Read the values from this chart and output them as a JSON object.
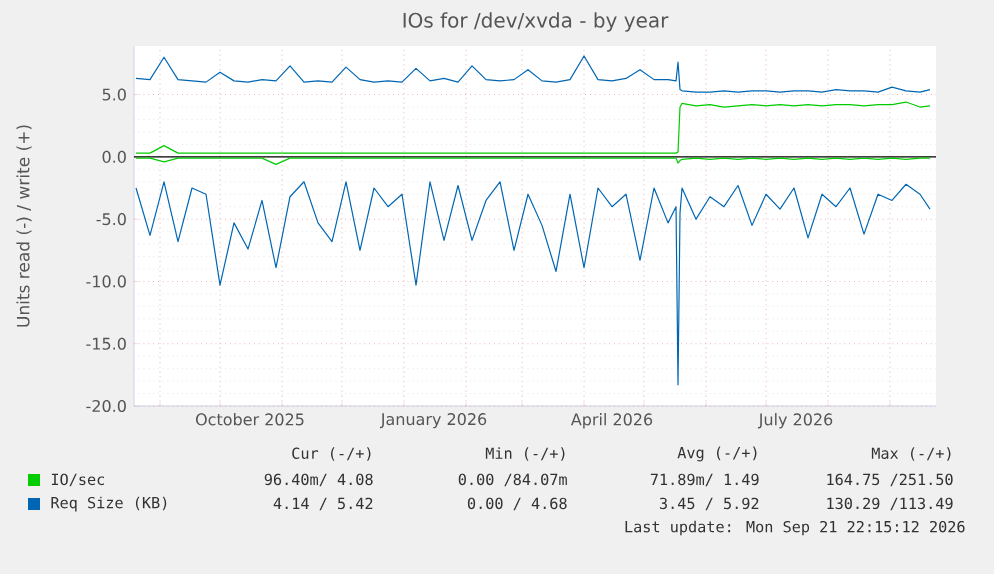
{
  "chart_data": {
    "type": "line",
    "title": "IOs for /dev/xvda - by year",
    "ylabel": "Units read (-) / write (+)",
    "x": [
      "2025-08-20",
      "2025-08-27",
      "2025-09-03",
      "2025-09-10",
      "2025-09-17",
      "2025-09-24",
      "2025-10-01",
      "2025-10-08",
      "2025-10-15",
      "2025-10-22",
      "2025-10-29",
      "2025-11-05",
      "2025-11-12",
      "2025-11-19",
      "2025-11-26",
      "2025-12-03",
      "2025-12-10",
      "2025-12-17",
      "2025-12-24",
      "2025-12-31",
      "2026-01-07",
      "2026-01-14",
      "2026-01-21",
      "2026-01-28",
      "2026-02-04",
      "2026-02-11",
      "2026-02-18",
      "2026-02-25",
      "2026-03-04",
      "2026-03-11",
      "2026-03-18",
      "2026-03-25",
      "2026-04-01",
      "2026-04-08",
      "2026-04-15",
      "2026-04-22",
      "2026-04-29",
      "2026-05-06",
      "2026-05-13",
      "2026-05-17",
      "2026-05-18",
      "2026-05-19",
      "2026-05-20",
      "2026-05-27",
      "2026-06-03",
      "2026-06-10",
      "2026-06-17",
      "2026-06-24",
      "2026-07-01",
      "2026-07-08",
      "2026-07-15",
      "2026-07-22",
      "2026-07-29",
      "2026-08-05",
      "2026-08-12",
      "2026-08-19",
      "2026-08-26",
      "2026-09-02",
      "2026-09-09",
      "2026-09-16",
      "2026-09-21"
    ],
    "series": [
      {
        "name": "IO/sec",
        "color": "#00cc00",
        "values": [
          0.3,
          0.3,
          0.9,
          0.3,
          0.3,
          0.3,
          0.3,
          0.3,
          0.3,
          0.3,
          0.3,
          0.3,
          0.3,
          0.3,
          0.3,
          0.3,
          0.3,
          0.3,
          0.3,
          0.3,
          0.3,
          0.3,
          0.3,
          0.3,
          0.3,
          0.3,
          0.3,
          0.3,
          0.3,
          0.3,
          0.3,
          0.3,
          0.3,
          0.3,
          0.3,
          0.3,
          0.3,
          0.3,
          0.3,
          0.3,
          0.4,
          4.0,
          4.3,
          4.1,
          4.2,
          4.0,
          4.1,
          4.2,
          4.1,
          4.2,
          4.1,
          4.2,
          4.1,
          4.2,
          4.2,
          4.1,
          4.2,
          4.2,
          4.4,
          4.0,
          4.1
        ]
      },
      {
        "color": "#00cc00",
        "values": [
          -0.1,
          -0.1,
          -0.4,
          -0.1,
          -0.1,
          -0.1,
          -0.1,
          -0.1,
          -0.1,
          -0.1,
          -0.6,
          -0.1,
          -0.1,
          -0.1,
          -0.1,
          -0.1,
          -0.1,
          -0.1,
          -0.1,
          -0.1,
          -0.1,
          -0.1,
          -0.1,
          -0.1,
          -0.1,
          -0.1,
          -0.1,
          -0.1,
          -0.1,
          -0.1,
          -0.1,
          -0.1,
          -0.1,
          -0.1,
          -0.1,
          -0.1,
          -0.1,
          -0.1,
          -0.1,
          -0.1,
          -0.5,
          -0.3,
          -0.2,
          -0.1,
          -0.2,
          -0.1,
          -0.2,
          -0.1,
          -0.2,
          -0.1,
          -0.2,
          -0.1,
          -0.2,
          -0.1,
          -0.2,
          -0.1,
          -0.2,
          -0.1,
          -0.2,
          -0.1,
          -0.1
        ]
      },
      {
        "name": "Req Size (KB)",
        "color": "#0066b3",
        "values": [
          6.3,
          6.2,
          8.0,
          6.2,
          6.1,
          6.0,
          6.8,
          6.1,
          6.0,
          6.2,
          6.1,
          7.3,
          6.0,
          6.1,
          6.0,
          7.2,
          6.2,
          6.0,
          6.1,
          6.0,
          7.1,
          6.1,
          6.3,
          6.0,
          7.3,
          6.2,
          6.1,
          6.2,
          7.0,
          6.1,
          6.0,
          6.2,
          8.1,
          6.2,
          6.1,
          6.3,
          7.0,
          6.2,
          6.2,
          6.1,
          7.6,
          5.4,
          5.3,
          5.2,
          5.2,
          5.3,
          5.2,
          5.3,
          5.3,
          5.2,
          5.3,
          5.3,
          5.2,
          5.4,
          5.3,
          5.3,
          5.2,
          5.6,
          5.3,
          5.2,
          5.4
        ]
      },
      {
        "color": "#0066b3",
        "values": [
          -2.5,
          -6.3,
          -2.0,
          -6.8,
          -2.5,
          -3.0,
          -10.3,
          -5.3,
          -7.4,
          -3.5,
          -8.9,
          -3.2,
          -2.0,
          -5.3,
          -6.8,
          -2.0,
          -7.5,
          -2.5,
          -4.0,
          -3.0,
          -10.3,
          -2.0,
          -6.7,
          -2.3,
          -6.7,
          -3.5,
          -2.0,
          -7.5,
          -3.0,
          -5.5,
          -9.2,
          -3.0,
          -8.9,
          -2.5,
          -4.0,
          -3.0,
          -8.3,
          -2.5,
          -5.3,
          -4.0,
          -18.3,
          -4.5,
          -2.5,
          -5.0,
          -3.2,
          -4.0,
          -2.3,
          -5.5,
          -3.0,
          -4.2,
          -2.5,
          -6.5,
          -3.0,
          -4.0,
          -2.5,
          -6.2,
          -3.0,
          -3.5,
          -2.2,
          -3.0,
          -4.2
        ]
      }
    ],
    "xlim": [
      "2025-08-19",
      "2026-09-24"
    ],
    "ylim": [
      -20,
      8.9
    ],
    "xticks": [
      {
        "value": "2025-09-01",
        "label": null
      },
      {
        "value": "2025-10-01",
        "label": null
      },
      {
        "value": "2025-11-01",
        "label": null
      },
      {
        "value": "2025-12-01",
        "label": null
      },
      {
        "value": "2026-01-01",
        "label": null
      },
      {
        "value": "2026-02-01",
        "label": null
      },
      {
        "value": "2026-03-01",
        "label": null
      },
      {
        "value": "2026-04-01",
        "label": null
      },
      {
        "value": "2026-05-01",
        "label": null
      },
      {
        "value": "2026-06-01",
        "label": null
      },
      {
        "value": "2026-07-01",
        "label": null
      },
      {
        "value": "2026-08-01",
        "label": null
      },
      {
        "value": "2026-09-01",
        "label": null
      },
      {
        "value": "2025-10-16",
        "label": "October 2025"
      },
      {
        "value": "2026-01-16",
        "label": "January 2026"
      },
      {
        "value": "2026-04-15",
        "label": "April 2026"
      },
      {
        "value": "2026-07-16",
        "label": "July 2026"
      }
    ],
    "yticks": [
      {
        "value": -20,
        "label": "-20.0"
      },
      {
        "value": -15,
        "label": "-15.0"
      },
      {
        "value": -10,
        "label": "-10.0"
      },
      {
        "value": -5,
        "label": "-5.0"
      },
      {
        "value": 0,
        "label": "0.0"
      },
      {
        "value": 5,
        "label": "5.0"
      }
    ],
    "ref_lines": [
      {
        "axis": "y",
        "value": 0,
        "color": "#000000"
      }
    ],
    "grid": true,
    "legend": "bottom",
    "marker": "none",
    "line_style": "solid",
    "annotations": [
      "Cur (-/+)",
      "Min (-/+)",
      "Avg (-/+)",
      "Max (-/+)",
      "96.40m/ 4.08",
      "0.00 /84.07m",
      "71.89m/ 1.49",
      "164.75 /251.50",
      "4.14 / 5.42",
      "0.00 / 4.68",
      "3.45 / 5.92",
      "130.29 /113.49",
      "Last update: Mon Sep 21 22:15:12 2026"
    ]
  }
}
